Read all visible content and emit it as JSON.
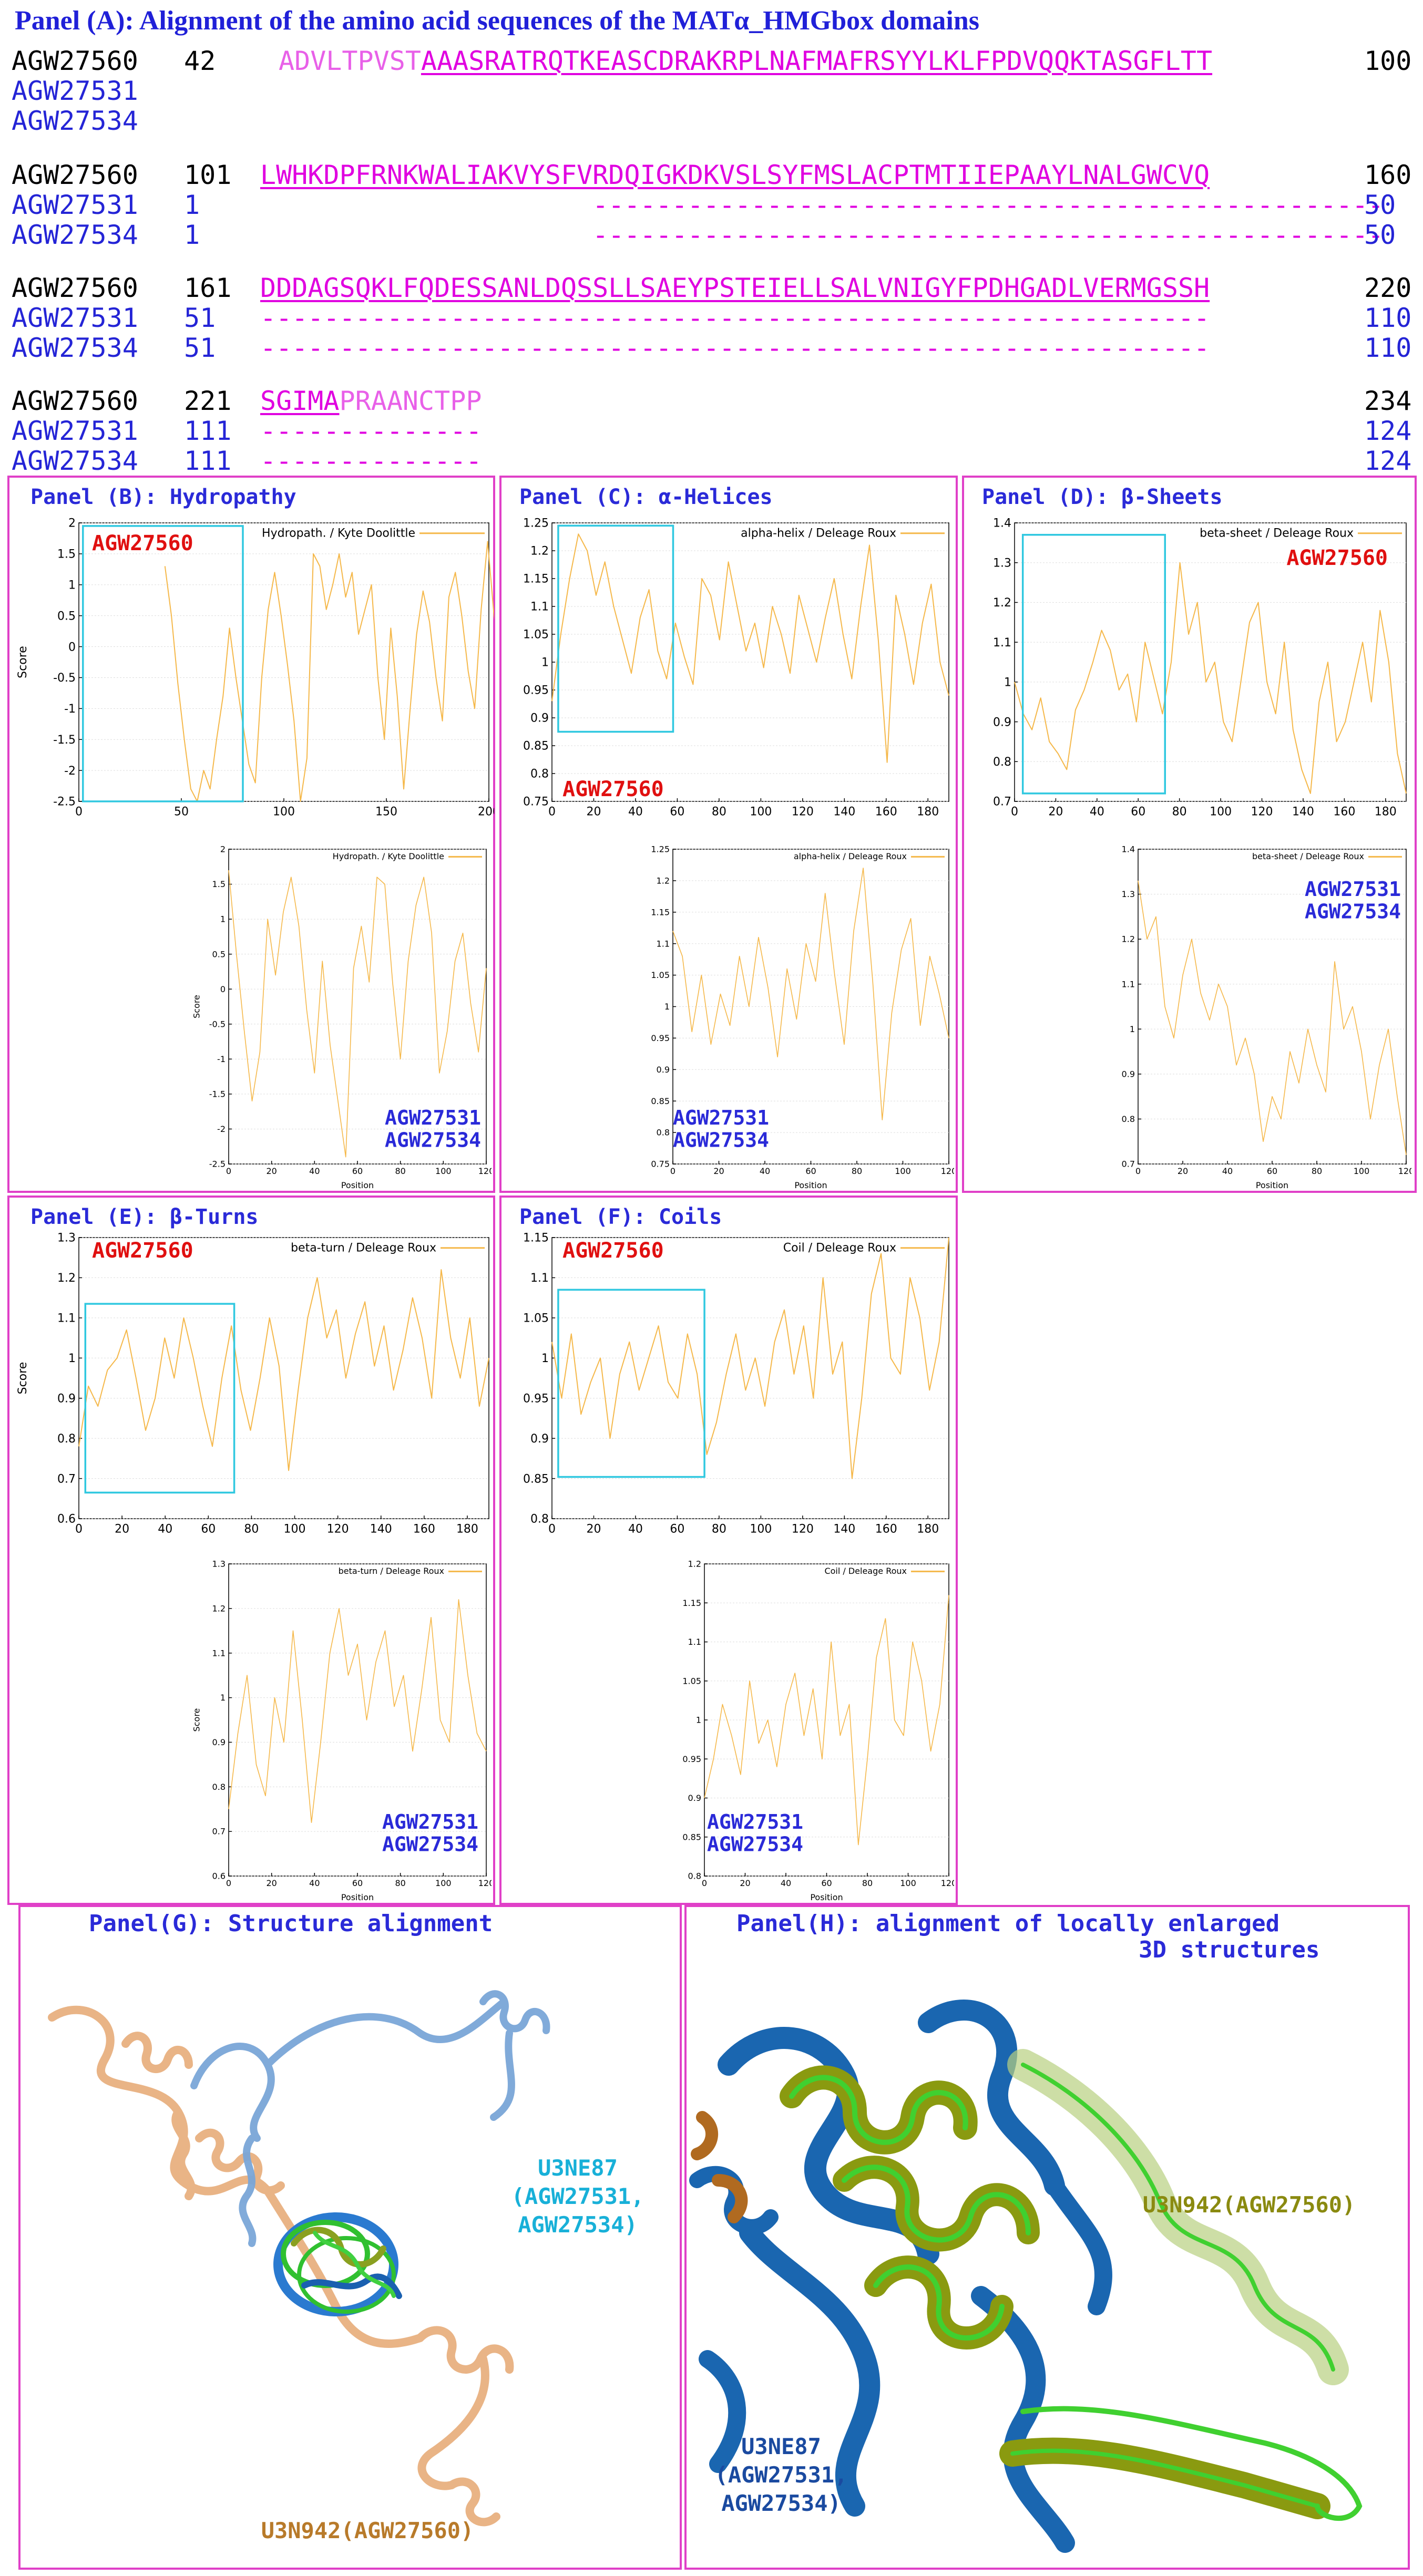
{
  "panelA": {
    "title": "Panel (A):  Alignment of the amino acid sequences of the MATα_HMGbox domains",
    "blocks": [
      {
        "rows": [
          {
            "id": "AGW27560",
            "start": "42",
            "seq_pre": "ADVLTPVST",
            "seq": "AAASRATRQTKEASCDRAKRPLNAFMAFRSYYLKLFPDVQQKTASGFLTT",
            "seq_post": "",
            "end": "100"
          },
          {
            "id": "AGW27531",
            "start": "",
            "seq_pre": "",
            "seq": "",
            "seq_post": "",
            "end": ""
          },
          {
            "id": "AGW27534",
            "start": "",
            "seq_pre": "",
            "seq": "",
            "seq_post": "",
            "end": ""
          }
        ]
      },
      {
        "rows": [
          {
            "id": "AGW27560",
            "start": "101",
            "seq_pre": "",
            "seq": "LWHKDPFRNKWALIAKVYSFVRDQIGKDKVSLSYFMSLACPTMTIIEPAAYLNALGWCVQ",
            "seq_post": "",
            "end": "160"
          },
          {
            "id": "AGW27531",
            "start": "1",
            "seq_pre": "",
            "seq": "                     --------------------------------------------------",
            "seq_post": "",
            "end": "50"
          },
          {
            "id": "AGW27534",
            "start": "1",
            "seq_pre": "",
            "seq": "                     --------------------------------------------------",
            "seq_post": "",
            "end": "50"
          }
        ]
      },
      {
        "rows": [
          {
            "id": "AGW27560",
            "start": "161",
            "seq_pre": "",
            "seq": "DDDAGSQKLFQDESSANLDQSSLLSAEYPSTEIELLSALVNIGYFPDHGADLVERMGSSH",
            "seq_post": "",
            "end": "220"
          },
          {
            "id": "AGW27531",
            "start": "51",
            "seq_pre": "",
            "seq": "------------------------------------------------------------",
            "seq_post": "",
            "end": "110"
          },
          {
            "id": "AGW27534",
            "start": "51",
            "seq_pre": "",
            "seq": "------------------------------------------------------------",
            "seq_post": "",
            "end": "110"
          }
        ]
      },
      {
        "rows": [
          {
            "id": "AGW27560",
            "start": "221",
            "seq_pre": "",
            "seq": "SGIMA",
            "seq_post": "PRAANCTPP",
            "end": "234"
          },
          {
            "id": "AGW27531",
            "start": "111",
            "seq_pre": "",
            "seq": "--------------",
            "seq_post": "",
            "end": "124"
          },
          {
            "id": "AGW27534",
            "start": "111",
            "seq_pre": "",
            "seq": "--------------",
            "seq_post": "",
            "end": "124"
          }
        ]
      }
    ]
  },
  "labels": {
    "agw27560": "AGW27560",
    "agw27531": "AGW27531",
    "agw27534": "AGW27534",
    "score": "Score",
    "position": "Position"
  },
  "panels": {
    "B": {
      "title": "Panel (B): Hydropathy",
      "legend": "Hydropath. / Kyte Doolittle"
    },
    "C": {
      "title": "Panel (C): α-Helices",
      "legend": "alpha-helix / Deleage Roux"
    },
    "D": {
      "title": "Panel (D): β-Sheets",
      "legend": "beta-sheet / Deleage Roux"
    },
    "E": {
      "title": "Panel (E): β-Turns",
      "legend": "beta-turn / Deleage Roux"
    },
    "F": {
      "title": "Panel (F): Coils",
      "legend": "Coil / Deleage Roux"
    },
    "G": {
      "title": "Panel(G): Structure alignment",
      "label_blue_line1": "U3NE87",
      "label_blue_line2": "(AGW27531,",
      "label_blue_line3": "AGW27534)",
      "label_orange": "U3N942(AGW27560)"
    },
    "H": {
      "title_line1": "Panel(H): alignment of locally enlarged",
      "title_line2": "3D structures",
      "label_green": "U3N942(AGW27560)",
      "label_blue_line1": "U3NE87",
      "label_blue_line2": "(AGW27531,",
      "label_blue_line3": "AGW27534)"
    }
  },
  "colors": {
    "line": "#f5b84a",
    "cyan_box": "#30c8e0",
    "panel_border": "#e040c8",
    "title_blue": "#2a2ad8",
    "red": "#e01010"
  },
  "chart_data": [
    {
      "type": "line",
      "panel": "B",
      "series": [
        {
          "name": "Hydropath. / Kyte Doolittle",
          "x_range": [
            42,
            234
          ],
          "values": [
            1.3,
            0.5,
            -0.6,
            -1.5,
            -2.3,
            -2.5,
            -2.0,
            -2.3,
            -1.5,
            -0.8,
            0.3,
            -0.5,
            -1.2,
            -1.9,
            -2.2,
            -0.5,
            0.6,
            1.2,
            0.5,
            -0.3,
            -1.2,
            -2.5,
            -1.8,
            1.5,
            1.3,
            0.6,
            1.0,
            1.5,
            0.8,
            1.2,
            0.2,
            0.6,
            1.0,
            -0.5,
            -1.5,
            0.3,
            -0.8,
            -2.3,
            -1.0,
            0.2,
            0.9,
            0.4,
            -0.5,
            -1.2,
            0.8,
            1.2,
            0.5,
            -0.4,
            -1.0,
            0.6,
            1.7,
            0.5,
            -0.2,
            -0.6,
            0.2,
            0.7,
            1.2,
            0.5,
            -0.8,
            -1.4,
            -0.4,
            0.3
          ]
        }
      ],
      "xlim": [
        0,
        200
      ],
      "ylim": [
        -2.5,
        2
      ]
    },
    {
      "type": "line",
      "panel": "B-inset",
      "series": [
        {
          "name": "Hydropath. / Kyte Doolittle",
          "values": [
            1.7,
            0.5,
            -0.6,
            -1.6,
            -0.9,
            1.0,
            0.2,
            1.1,
            1.6,
            0.9,
            -0.3,
            -1.2,
            0.4,
            -0.8,
            -1.6,
            -2.4,
            0.3,
            0.9,
            0.1,
            1.6,
            1.5,
            0.1,
            -1.0,
            0.4,
            1.2,
            1.6,
            0.8,
            -1.2,
            -0.6,
            0.4,
            0.8,
            -0.2,
            -0.9,
            0.3
          ]
        }
      ],
      "xlim": [
        0,
        120
      ],
      "ylim": [
        -2.5,
        2
      ]
    },
    {
      "type": "line",
      "panel": "C",
      "series": [
        {
          "name": "alpha-helix / Deleage Roux",
          "values": [
            0.93,
            1.05,
            1.15,
            1.23,
            1.2,
            1.12,
            1.18,
            1.1,
            1.04,
            0.98,
            1.08,
            1.13,
            1.02,
            0.97,
            1.07,
            1.01,
            0.96,
            1.15,
            1.12,
            1.04,
            1.18,
            1.1,
            1.02,
            1.07,
            0.99,
            1.1,
            1.05,
            0.98,
            1.12,
            1.06,
            1.0,
            1.08,
            1.15,
            1.05,
            0.97,
            1.1,
            1.21,
            1.04,
            0.82,
            1.12,
            1.05,
            0.96,
            1.07,
            1.14,
            1.0,
            0.94
          ]
        }
      ],
      "xlim": [
        0,
        190
      ],
      "ylim": [
        0.75,
        1.25
      ]
    },
    {
      "type": "line",
      "panel": "C-inset",
      "series": [
        {
          "name": "alpha-helix / Deleage Roux",
          "values": [
            1.12,
            1.08,
            0.96,
            1.05,
            0.94,
            1.02,
            0.97,
            1.08,
            1.0,
            1.11,
            1.03,
            0.92,
            1.06,
            0.98,
            1.1,
            1.04,
            1.18,
            1.05,
            0.94,
            1.12,
            1.22,
            1.04,
            0.82,
            0.99,
            1.09,
            1.14,
            0.97,
            1.08,
            1.02,
            0.95
          ]
        }
      ],
      "xlim": [
        0,
        120
      ],
      "ylim": [
        0.75,
        1.25
      ]
    },
    {
      "type": "line",
      "panel": "D",
      "series": [
        {
          "name": "beta-sheet / Deleage Roux",
          "values": [
            1.0,
            0.92,
            0.88,
            0.96,
            0.85,
            0.82,
            0.78,
            0.93,
            0.98,
            1.05,
            1.13,
            1.08,
            0.98,
            1.02,
            0.9,
            1.1,
            1.01,
            0.92,
            1.05,
            1.3,
            1.12,
            1.2,
            1.0,
            1.05,
            0.9,
            0.85,
            1.0,
            1.15,
            1.2,
            1.0,
            0.92,
            1.1,
            0.88,
            0.78,
            0.72,
            0.95,
            1.05,
            0.85,
            0.9,
            1.0,
            1.1,
            0.95,
            1.18,
            1.05,
            0.82,
            0.72
          ]
        }
      ],
      "xlim": [
        0,
        190
      ],
      "ylim": [
        0.7,
        1.4
      ]
    },
    {
      "type": "line",
      "panel": "D-inset",
      "series": [
        {
          "name": "beta-sheet / Deleage Roux",
          "values": [
            1.33,
            1.2,
            1.25,
            1.05,
            0.98,
            1.12,
            1.2,
            1.08,
            1.02,
            1.1,
            1.05,
            0.92,
            0.98,
            0.9,
            0.75,
            0.85,
            0.8,
            0.95,
            0.88,
            1.0,
            0.92,
            0.86,
            1.15,
            1.0,
            1.05,
            0.95,
            0.8,
            0.92,
            1.0,
            0.85,
            0.72
          ]
        }
      ],
      "xlim": [
        0,
        120
      ],
      "ylim": [
        0.7,
        1.4
      ]
    },
    {
      "type": "line",
      "panel": "E",
      "series": [
        {
          "name": "beta-turn / Deleage Roux",
          "values": [
            0.78,
            0.93,
            0.88,
            0.97,
            1.0,
            1.07,
            0.95,
            0.82,
            0.9,
            1.05,
            0.95,
            1.1,
            1.0,
            0.88,
            0.78,
            0.95,
            1.08,
            0.92,
            0.82,
            0.95,
            1.1,
            0.98,
            0.72,
            0.92,
            1.1,
            1.2,
            1.05,
            1.12,
            0.95,
            1.06,
            1.14,
            0.98,
            1.08,
            0.92,
            1.02,
            1.15,
            1.05,
            0.9,
            1.22,
            1.05,
            0.95,
            1.1,
            0.88,
            1.0
          ]
        }
      ],
      "xlim": [
        0,
        190
      ],
      "ylim": [
        0.6,
        1.3
      ]
    },
    {
      "type": "line",
      "panel": "E-inset",
      "series": [
        {
          "name": "beta-turn / Deleage Roux",
          "values": [
            0.75,
            0.92,
            1.05,
            0.85,
            0.78,
            1.0,
            0.9,
            1.15,
            0.95,
            0.72,
            0.9,
            1.1,
            1.2,
            1.05,
            1.12,
            0.95,
            1.08,
            1.15,
            0.98,
            1.05,
            0.88,
            1.02,
            1.18,
            0.95,
            0.9,
            1.22,
            1.05,
            0.92,
            0.88
          ]
        }
      ],
      "xlim": [
        0,
        120
      ],
      "ylim": [
        0.6,
        1.3
      ]
    },
    {
      "type": "line",
      "panel": "F",
      "series": [
        {
          "name": "Coil / Deleage Roux",
          "values": [
            1.02,
            0.95,
            1.03,
            0.93,
            0.97,
            1.0,
            0.9,
            0.98,
            1.02,
            0.96,
            1.0,
            1.04,
            0.97,
            0.95,
            1.03,
            0.98,
            0.88,
            0.92,
            0.98,
            1.03,
            0.96,
            1.0,
            0.94,
            1.02,
            1.06,
            0.98,
            1.04,
            0.95,
            1.1,
            0.98,
            1.02,
            0.85,
            0.95,
            1.08,
            1.13,
            1.0,
            0.98,
            1.1,
            1.05,
            0.96,
            1.02,
            1.15
          ]
        }
      ],
      "xlim": [
        0,
        190
      ],
      "ylim": [
        0.8,
        1.15
      ]
    },
    {
      "type": "line",
      "panel": "F-inset",
      "series": [
        {
          "name": "Coil / Deleage Roux",
          "values": [
            0.9,
            0.95,
            1.02,
            0.98,
            0.93,
            1.05,
            0.97,
            1.0,
            0.94,
            1.02,
            1.06,
            0.98,
            1.04,
            0.95,
            1.1,
            0.98,
            1.02,
            0.84,
            0.95,
            1.08,
            1.13,
            1.0,
            0.98,
            1.1,
            1.05,
            0.96,
            1.02,
            1.16
          ]
        }
      ],
      "xlim": [
        0,
        120
      ],
      "ylim": [
        0.8,
        1.2
      ]
    }
  ]
}
